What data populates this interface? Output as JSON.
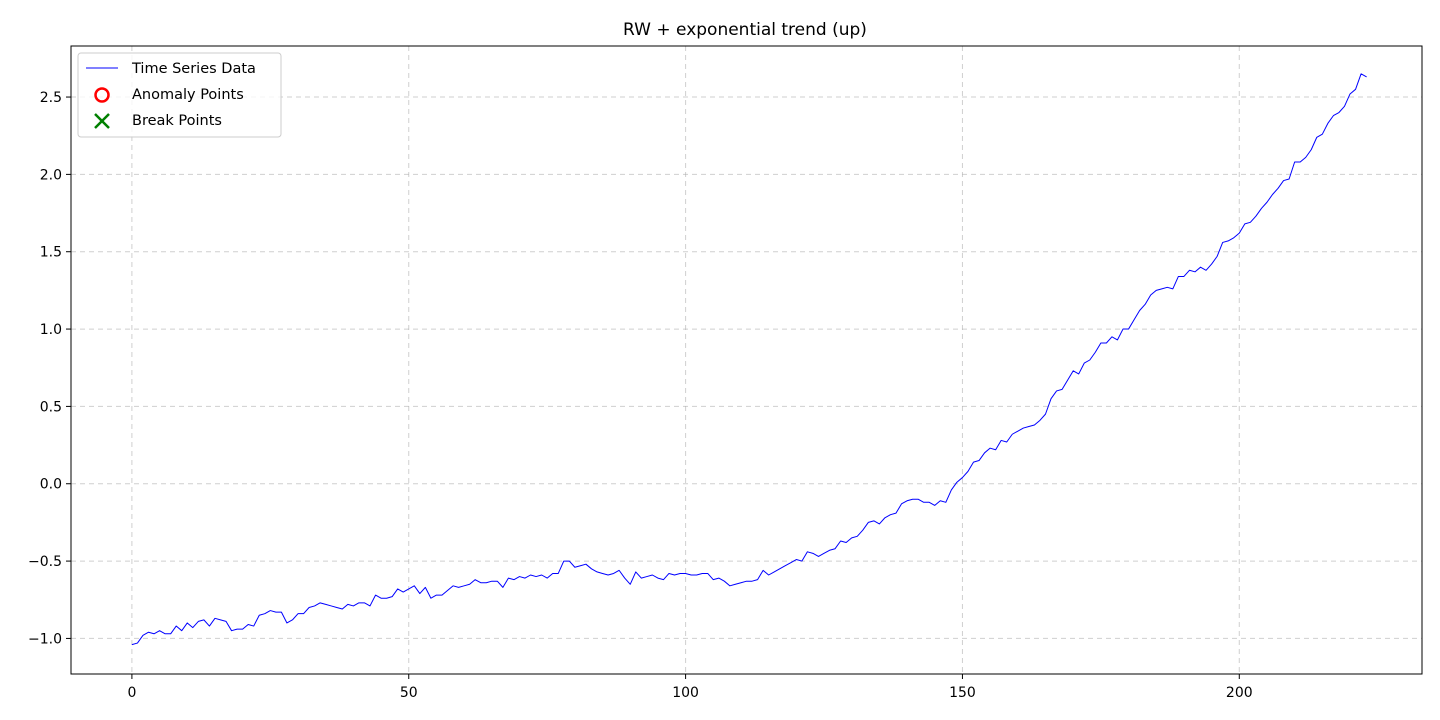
{
  "chart_data": {
    "type": "line",
    "title": "RW + exponential trend (up)",
    "xlabel": "",
    "ylabel": "",
    "xlim": [
      -11,
      233
    ],
    "ylim": [
      -1.23,
      2.83
    ],
    "xticks": [
      0,
      50,
      100,
      150,
      200
    ],
    "yticks": [
      -1.0,
      -0.5,
      0.0,
      0.5,
      1.0,
      1.5,
      2.0,
      2.5
    ],
    "xtick_labels": [
      "0",
      "50",
      "100",
      "150",
      "200"
    ],
    "ytick_labels": [
      "−1.0",
      "−0.5",
      "0.0",
      "0.5",
      "1.0",
      "1.5",
      "2.0",
      "2.5"
    ],
    "grid": true,
    "legend": {
      "placement": "top-left",
      "entries": [
        {
          "label": "Time Series Data",
          "marker": "line",
          "color": "#0000ff"
        },
        {
          "label": "Anomaly Points",
          "marker": "circle-open",
          "color": "#ff0000"
        },
        {
          "label": "Break Points",
          "marker": "x",
          "color": "#008000"
        }
      ]
    },
    "series": [
      {
        "name": "Time Series Data",
        "color": "#0000ff",
        "x_start": 0,
        "x_step": 1,
        "values": [
          -1.04,
          -1.03,
          -0.98,
          -0.96,
          -0.97,
          -0.95,
          -0.97,
          -0.97,
          -0.92,
          -0.95,
          -0.9,
          -0.93,
          -0.89,
          -0.88,
          -0.92,
          -0.87,
          -0.88,
          -0.89,
          -0.95,
          -0.94,
          -0.94,
          -0.91,
          -0.92,
          -0.85,
          -0.84,
          -0.82,
          -0.83,
          -0.83,
          -0.9,
          -0.88,
          -0.84,
          -0.84,
          -0.8,
          -0.79,
          -0.77,
          -0.78,
          -0.79,
          -0.8,
          -0.81,
          -0.78,
          -0.79,
          -0.77,
          -0.77,
          -0.79,
          -0.72,
          -0.74,
          -0.74,
          -0.73,
          -0.68,
          -0.7,
          -0.68,
          -0.66,
          -0.71,
          -0.67,
          -0.74,
          -0.72,
          -0.72,
          -0.69,
          -0.66,
          -0.67,
          -0.66,
          -0.65,
          -0.62,
          -0.64,
          -0.64,
          -0.63,
          -0.63,
          -0.67,
          -0.61,
          -0.62,
          -0.6,
          -0.61,
          -0.59,
          -0.6,
          -0.59,
          -0.61,
          -0.58,
          -0.58,
          -0.5,
          -0.5,
          -0.54,
          -0.53,
          -0.52,
          -0.55,
          -0.57,
          -0.58,
          -0.59,
          -0.58,
          -0.56,
          -0.61,
          -0.65,
          -0.57,
          -0.61,
          -0.6,
          -0.59,
          -0.61,
          -0.62,
          -0.58,
          -0.59,
          -0.58,
          -0.58,
          -0.59,
          -0.59,
          -0.58,
          -0.58,
          -0.62,
          -0.61,
          -0.63,
          -0.66,
          -0.65,
          -0.64,
          -0.63,
          -0.63,
          -0.62,
          -0.56,
          -0.59,
          -0.57,
          -0.55,
          -0.53,
          -0.51,
          -0.49,
          -0.5,
          -0.44,
          -0.45,
          -0.47,
          -0.45,
          -0.43,
          -0.42,
          -0.37,
          -0.38,
          -0.35,
          -0.34,
          -0.3,
          -0.25,
          -0.24,
          -0.26,
          -0.22,
          -0.2,
          -0.19,
          -0.13,
          -0.11,
          -0.1,
          -0.1,
          -0.12,
          -0.12,
          -0.14,
          -0.11,
          -0.12,
          -0.04,
          0.01,
          0.04,
          0.08,
          0.14,
          0.15,
          0.2,
          0.23,
          0.22,
          0.28,
          0.27,
          0.32,
          0.34,
          0.36,
          0.37,
          0.38,
          0.41,
          0.45,
          0.55,
          0.6,
          0.61,
          0.67,
          0.73,
          0.71,
          0.78,
          0.8,
          0.85,
          0.91,
          0.91,
          0.95,
          0.93,
          1.0,
          1.0,
          1.06,
          1.12,
          1.16,
          1.22,
          1.25,
          1.26,
          1.27,
          1.26,
          1.34,
          1.34,
          1.38,
          1.37,
          1.4,
          1.38,
          1.42,
          1.47,
          1.56,
          1.57,
          1.59,
          1.62,
          1.68,
          1.69,
          1.73,
          1.78,
          1.82,
          1.87,
          1.91,
          1.96,
          1.97,
          2.08,
          2.08,
          2.11,
          2.16,
          2.24,
          2.26,
          2.33,
          2.38,
          2.4,
          2.44,
          2.52,
          2.55,
          2.65,
          2.63
        ]
      }
    ],
    "anomaly_points": [],
    "break_points": []
  }
}
